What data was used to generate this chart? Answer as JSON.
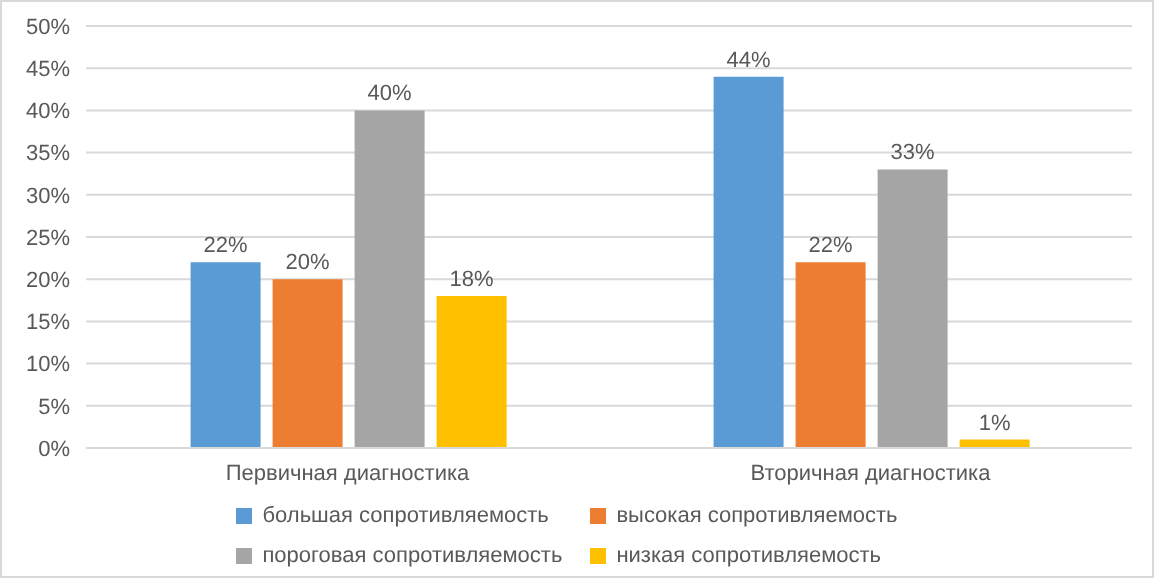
{
  "chart_data": {
    "type": "bar",
    "categories": [
      "Первичная диагностика",
      "Вторичная диагностика"
    ],
    "series": [
      {
        "name": "большая сопротивляемость",
        "color": "#5b9bd5",
        "values": [
          22,
          44
        ],
        "value_labels": [
          "22%",
          "44%"
        ]
      },
      {
        "name": "высокая сопротивляемость",
        "color": "#ed7d31",
        "values": [
          20,
          22
        ],
        "value_labels": [
          "20%",
          "22%"
        ]
      },
      {
        "name": "пороговая сопротивляемость",
        "color": "#a5a5a5",
        "values": [
          40,
          33
        ],
        "value_labels": [
          "40%",
          "33%"
        ]
      },
      {
        "name": "низкая сопротивляемость",
        "color": "#ffc000",
        "values": [
          18,
          1
        ],
        "value_labels": [
          "18%",
          "1%"
        ]
      }
    ],
    "ylim": [
      0,
      50
    ],
    "yticks": [
      {
        "value": 0,
        "label": "0%"
      },
      {
        "value": 5,
        "label": "5%"
      },
      {
        "value": 10,
        "label": "10%"
      },
      {
        "value": 15,
        "label": "15%"
      },
      {
        "value": 20,
        "label": "20%"
      },
      {
        "value": 25,
        "label": "25%"
      },
      {
        "value": 30,
        "label": "30%"
      },
      {
        "value": 35,
        "label": "35%"
      },
      {
        "value": 40,
        "label": "40%"
      },
      {
        "value": 45,
        "label": "45%"
      },
      {
        "value": 50,
        "label": "50%"
      }
    ],
    "grid": "y",
    "legend": "bottom"
  }
}
